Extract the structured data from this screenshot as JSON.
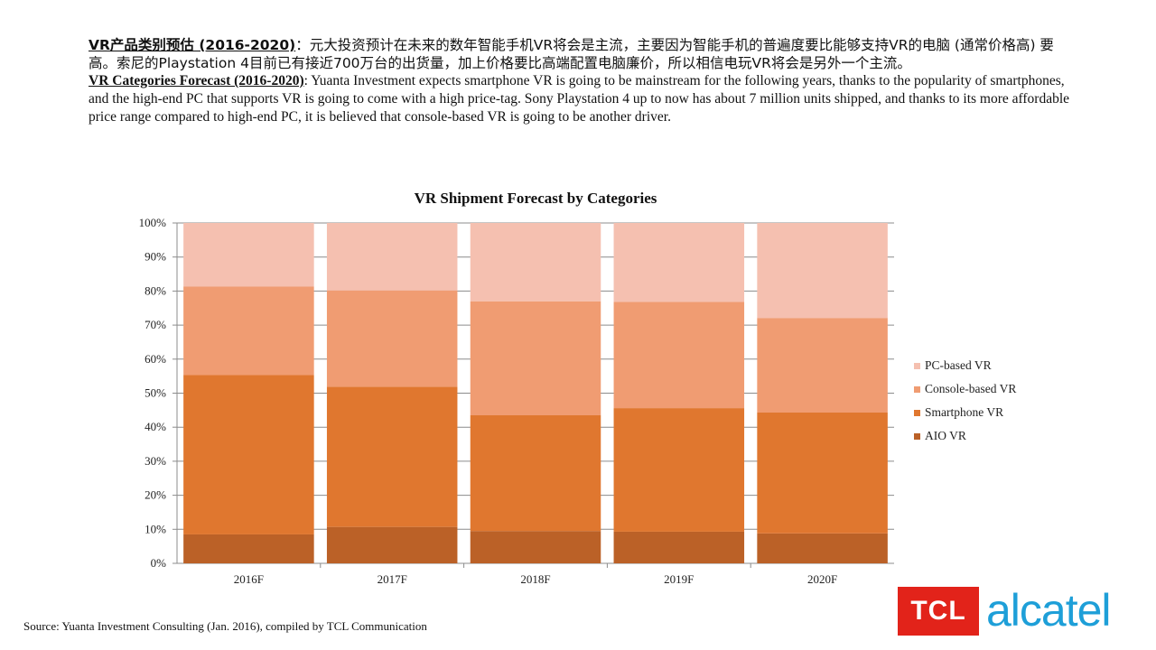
{
  "intro": {
    "zh_heading": "VR产品类别预估 (2016-2020)",
    "zh_body": "：元大投资预计在未来的数年智能手机VR将会是主流，主要因为智能手机的普遍度要比能够支持VR的电脑 (通常价格高) 要高。索尼的Playstation 4目前已有接近700万台的出货量，加上价格要比高端配置电脑廉价，所以相信电玩VR将会是另外一个主流。",
    "en_heading": "VR Categories Forecast (2016-2020)",
    "en_body": ": Yuanta Investment expects smartphone VR is going to be mainstream for the following years, thanks to the popularity of smartphones, and the high-end PC that supports VR is going to come with a high price-tag. Sony Playstation 4 up to now has about 7 million units shipped, and thanks to its more affordable price range compared to high-end PC, it is believed that console-based VR is going to be another driver."
  },
  "source": "Source: Yuanta Investment Consulting (Jan. 2016), compiled by TCL Communication",
  "logos": {
    "tcl": "TCL",
    "alcatel": "alcatel"
  },
  "chart_data": {
    "type": "bar",
    "stacked": "percent",
    "title": "VR Shipment Forecast by Categories",
    "categories": [
      "2016F",
      "2017F",
      "2018F",
      "2019F",
      "2020F"
    ],
    "y_ticks": [
      "0%",
      "10%",
      "20%",
      "30%",
      "40%",
      "50%",
      "60%",
      "70%",
      "80%",
      "90%",
      "100%"
    ],
    "ylim": [
      0,
      100
    ],
    "grid": true,
    "legend_position": "right",
    "series": [
      {
        "name": "AIO VR",
        "color": "#bb6127",
        "values": [
          8.5,
          10.7,
          9.5,
          9.3,
          8.8
        ]
      },
      {
        "name": "Smartphone VR",
        "color": "#e0772f",
        "values": [
          46.8,
          41.2,
          34,
          36.3,
          35.5
        ]
      },
      {
        "name": "Console-based VR",
        "color": "#f09c72",
        "values": [
          26,
          28.3,
          33.5,
          31.2,
          27.8
        ]
      },
      {
        "name": "PC-based VR",
        "color": "#f5c0b0",
        "values": [
          18.7,
          19.8,
          23,
          23.2,
          27.9
        ]
      }
    ]
  }
}
